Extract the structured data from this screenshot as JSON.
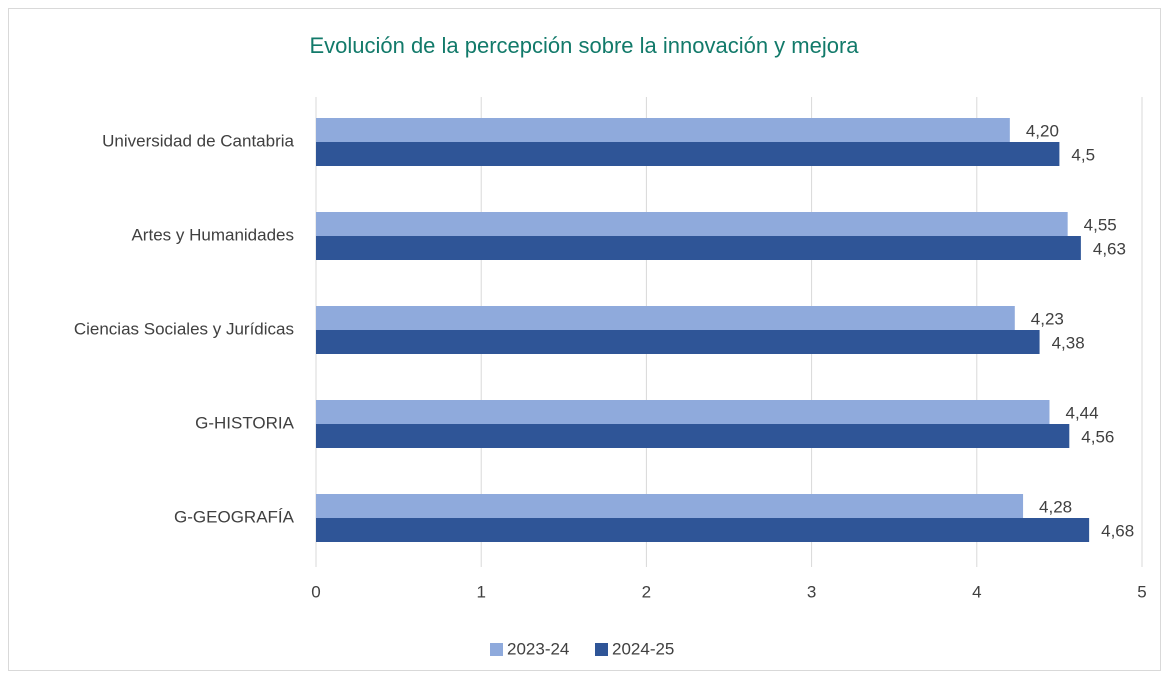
{
  "chart_data": {
    "type": "hbar",
    "title": "Evolución de la percepción sobre la innovación y mejora",
    "categories": [
      "Universidad de Cantabria",
      "Artes y Humanidades",
      "Ciencias Sociales y Jurídicas",
      "G-HISTORIA",
      "G-GEOGRAFÍA"
    ],
    "series": [
      {
        "name": "2023-24",
        "color": "#8faadc",
        "values": [
          4.2,
          4.55,
          4.23,
          4.44,
          4.28
        ],
        "value_labels": [
          "4,20",
          "4,55",
          "4,23",
          "4,44",
          "4,28"
        ]
      },
      {
        "name": "2024-25",
        "color": "#2f5597",
        "values": [
          4.5,
          4.63,
          4.38,
          4.56,
          4.68
        ],
        "value_labels": [
          "4,5",
          "4,63",
          "4,38",
          "4,56",
          "4,68"
        ]
      }
    ],
    "xlim": [
      0,
      5
    ],
    "xticks": [
      0,
      1,
      2,
      3,
      4,
      5
    ],
    "grid": true,
    "legend": "bottom"
  }
}
